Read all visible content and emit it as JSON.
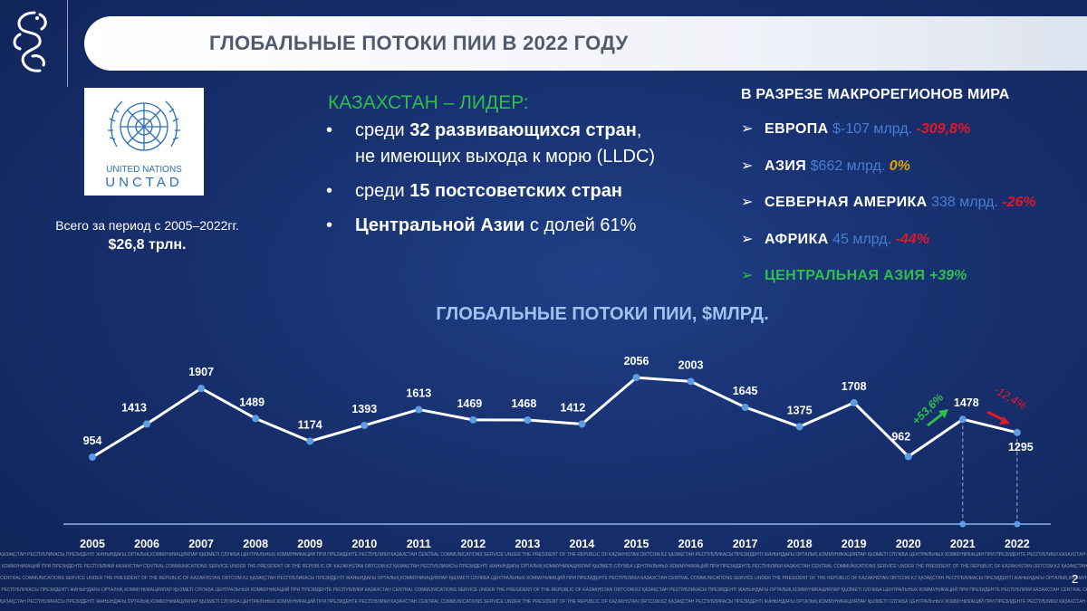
{
  "header": {
    "title": "ГЛОБАЛЬНЫЕ ПОТОКИ ПИИ В 2022 ГОДУ"
  },
  "unctad": {
    "line1": "UNITED NATIONS",
    "line2": "UNCTAD"
  },
  "total": {
    "caption": "Всего за период с 2005–2022гг.",
    "value": "$26,8 трлн."
  },
  "kazakhstan": {
    "title": "КАЗАХСТАН – ЛИДЕР:",
    "bullets": [
      {
        "pre": "среди ",
        "bold": "32 развивающихся стран",
        "post": ",",
        "line2": "не имеющих выхода к морю (LLDC)"
      },
      {
        "pre": "среди ",
        "bold": "15 постсоветских стран",
        "post": ""
      },
      {
        "pre": "",
        "bold": "Центральной Азии",
        "post": " с долей 61%"
      }
    ]
  },
  "regions": {
    "title": "В РАЗРЕЗЕ МАКРОРЕГИОНОВ  МИРА",
    "items": [
      {
        "name": "ЕВРОПА",
        "value": "$-107 млрд.",
        "change": "-309,8%",
        "change_color": "#e0182a"
      },
      {
        "name": "АЗИЯ",
        "value": "$662 млрд.",
        "change": "0%",
        "change_color": "#e5a000"
      },
      {
        "name": "СЕВЕРНАЯ АМЕРИКА",
        "value": "338 млрд.",
        "change": "-26%",
        "change_color": "#e0182a"
      },
      {
        "name": "АФРИКА",
        "value": "45 млрд.",
        "change": "-44%",
        "change_color": "#e0182a"
      },
      {
        "name": "ЦЕНТРАЛЬНАЯ АЗИЯ",
        "value": "",
        "change": "+39%",
        "change_color": "#2fbf4a",
        "highlight": true
      }
    ]
  },
  "chart_data": {
    "type": "line",
    "title": "ГЛОБАЛЬНЫЕ ПОТОКИ ПИИ, $МЛРД.",
    "categories": [
      "2005",
      "2006",
      "2007",
      "2008",
      "2009",
      "2010",
      "2011",
      "2012",
      "2013",
      "2014",
      "2015",
      "2016",
      "2017",
      "2018",
      "2019",
      "2020",
      "2021",
      "2022"
    ],
    "values": [
      954,
      1413,
      1907,
      1489,
      1174,
      1393,
      1613,
      1469,
      1468,
      1412,
      2056,
      2003,
      1645,
      1375,
      1708,
      962,
      1478,
      1295
    ],
    "annotations": [
      {
        "text": "+53,6%",
        "color": "#2fbf4a"
      },
      {
        "text": "-12,4%",
        "color": "#e0182a"
      }
    ],
    "line_color": "#ffffff",
    "marker_color": "#5b9ee6"
  },
  "footer": {
    "lines": [
      "ҚАЗАҚСТАН РЕСПУБЛИКАСЫ ПРЕЗИДЕНТІ ЖАНЫНДАҒЫ ОРТАЛЫҚ КОММУНИКАЦИЯЛАР ҚЫЗМЕТІ",
      "СЛУЖБА ЦЕНТРАЛЬНЫХ КОММУНИКАЦИЙ ПРИ ПРЕЗИДЕНТЕ РЕСПУБЛИКИ КАЗАХСТАН",
      "CENTRAL COMMUNICATIONS SERVICE UNDER THE PRESIDENT OF THE REPUBLIC OF KAZAKHSTAN",
      "ORTCOM.KZ"
    ]
  },
  "page_number": "2"
}
